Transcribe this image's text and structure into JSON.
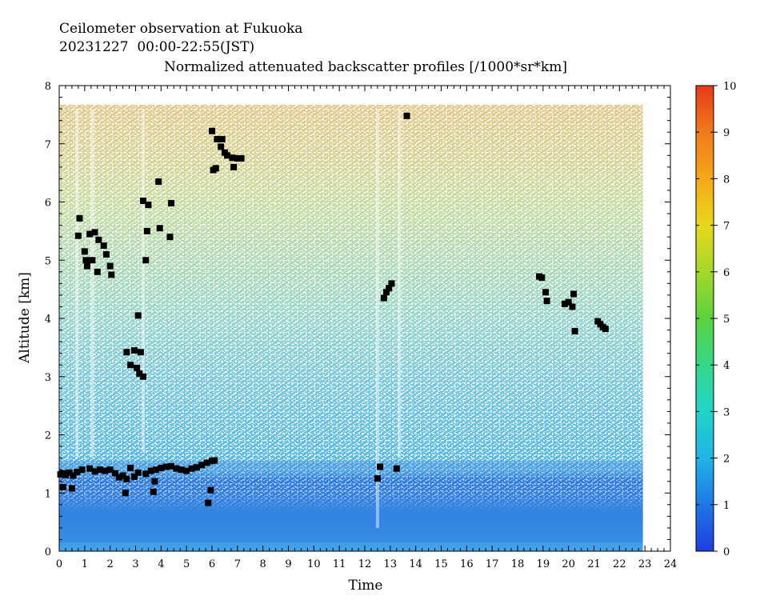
{
  "chart_data": {
    "type": "heatmap",
    "title_lines": [
      "Ceilometer observation at Fukuoka",
      "20231227  00:00-22:55(JST)"
    ],
    "subtitle": "Normalized attenuated backscatter profiles [/1000*sr*km]",
    "xlabel": "Time",
    "ylabel": "Altitude [km]",
    "xlim": [
      0,
      24
    ],
    "ylim": [
      0,
      8
    ],
    "x_ticks": [
      0,
      1,
      2,
      3,
      4,
      5,
      6,
      7,
      8,
      9,
      10,
      11,
      12,
      13,
      14,
      15,
      16,
      17,
      18,
      19,
      20,
      21,
      22,
      23,
      24
    ],
    "y_ticks": [
      0,
      1,
      2,
      3,
      4,
      5,
      6,
      7,
      8
    ],
    "data_extent": {
      "time_end": 22.92,
      "altitude_top": 7.67
    },
    "colorbar": {
      "ticks": [
        0,
        1,
        2,
        3,
        4,
        5,
        6,
        7,
        8,
        9,
        10
      ],
      "range": [
        0,
        10
      ],
      "colors": [
        "#1f3de0",
        "#1e78e6",
        "#20b4e6",
        "#22d4c8",
        "#34d88a",
        "#5ad23c",
        "#a4d82a",
        "#e8d81c",
        "#f6a818",
        "#f07a1a",
        "#e83a18"
      ]
    },
    "cloud_base_points": [
      {
        "x": 0.05,
        "y": 1.32
      },
      {
        "x": 0.15,
        "y": 1.34
      },
      {
        "x": 0.25,
        "y": 1.31
      },
      {
        "x": 0.4,
        "y": 1.35
      },
      {
        "x": 0.55,
        "y": 1.3
      },
      {
        "x": 0.7,
        "y": 1.36
      },
      {
        "x": 0.9,
        "y": 1.4
      },
      {
        "x": 1.2,
        "y": 1.42
      },
      {
        "x": 1.4,
        "y": 1.37
      },
      {
        "x": 1.6,
        "y": 1.4
      },
      {
        "x": 1.8,
        "y": 1.38
      },
      {
        "x": 2.0,
        "y": 1.4
      },
      {
        "x": 2.2,
        "y": 1.34
      },
      {
        "x": 2.35,
        "y": 1.27
      },
      {
        "x": 2.5,
        "y": 1.3
      },
      {
        "x": 2.65,
        "y": 1.24
      },
      {
        "x": 2.8,
        "y": 1.43
      },
      {
        "x": 2.95,
        "y": 1.28
      },
      {
        "x": 3.1,
        "y": 1.35
      },
      {
        "x": 3.4,
        "y": 1.33
      },
      {
        "x": 3.6,
        "y": 1.38
      },
      {
        "x": 3.8,
        "y": 1.4
      },
      {
        "x": 4.0,
        "y": 1.43
      },
      {
        "x": 4.2,
        "y": 1.45
      },
      {
        "x": 4.4,
        "y": 1.46
      },
      {
        "x": 4.6,
        "y": 1.42
      },
      {
        "x": 4.8,
        "y": 1.4
      },
      {
        "x": 5.0,
        "y": 1.38
      },
      {
        "x": 5.2,
        "y": 1.42
      },
      {
        "x": 5.4,
        "y": 1.44
      },
      {
        "x": 5.6,
        "y": 1.48
      },
      {
        "x": 5.8,
        "y": 1.52
      },
      {
        "x": 6.0,
        "y": 1.55
      },
      {
        "x": 6.1,
        "y": 1.56
      },
      {
        "x": 0.15,
        "y": 1.1
      },
      {
        "x": 0.5,
        "y": 1.08
      },
      {
        "x": 2.6,
        "y": 1.0
      },
      {
        "x": 3.7,
        "y": 1.02
      },
      {
        "x": 3.75,
        "y": 1.2
      },
      {
        "x": 5.85,
        "y": 0.83
      },
      {
        "x": 5.95,
        "y": 1.05
      },
      {
        "x": 0.8,
        "y": 5.72
      },
      {
        "x": 0.75,
        "y": 5.42
      },
      {
        "x": 1.0,
        "y": 5.15
      },
      {
        "x": 1.1,
        "y": 4.9
      },
      {
        "x": 1.05,
        "y": 5.0
      },
      {
        "x": 1.2,
        "y": 5.45
      },
      {
        "x": 1.3,
        "y": 5.0
      },
      {
        "x": 1.4,
        "y": 5.48
      },
      {
        "x": 1.5,
        "y": 4.8
      },
      {
        "x": 1.55,
        "y": 5.35
      },
      {
        "x": 1.75,
        "y": 5.25
      },
      {
        "x": 1.85,
        "y": 5.1
      },
      {
        "x": 2.0,
        "y": 4.9
      },
      {
        "x": 2.05,
        "y": 4.75
      },
      {
        "x": 2.65,
        "y": 3.42
      },
      {
        "x": 2.8,
        "y": 3.2
      },
      {
        "x": 2.95,
        "y": 3.45
      },
      {
        "x": 3.05,
        "y": 3.15
      },
      {
        "x": 3.15,
        "y": 3.05
      },
      {
        "x": 3.2,
        "y": 3.42
      },
      {
        "x": 3.1,
        "y": 4.05
      },
      {
        "x": 3.3,
        "y": 3.0
      },
      {
        "x": 3.3,
        "y": 6.02
      },
      {
        "x": 3.5,
        "y": 5.95
      },
      {
        "x": 3.45,
        "y": 5.5
      },
      {
        "x": 3.4,
        "y": 5.0
      },
      {
        "x": 3.9,
        "y": 6.35
      },
      {
        "x": 3.95,
        "y": 5.55
      },
      {
        "x": 4.35,
        "y": 5.4
      },
      {
        "x": 4.4,
        "y": 5.98
      },
      {
        "x": 6.0,
        "y": 7.22
      },
      {
        "x": 6.2,
        "y": 7.08
      },
      {
        "x": 6.35,
        "y": 6.95
      },
      {
        "x": 6.4,
        "y": 7.08
      },
      {
        "x": 6.5,
        "y": 6.85
      },
      {
        "x": 6.6,
        "y": 6.8
      },
      {
        "x": 6.8,
        "y": 6.76
      },
      {
        "x": 7.0,
        "y": 6.75
      },
      {
        "x": 7.15,
        "y": 6.75
      },
      {
        "x": 6.85,
        "y": 6.6
      },
      {
        "x": 6.05,
        "y": 6.55
      },
      {
        "x": 6.15,
        "y": 6.58
      },
      {
        "x": 13.65,
        "y": 7.48
      },
      {
        "x": 12.5,
        "y": 1.25
      },
      {
        "x": 12.6,
        "y": 1.45
      },
      {
        "x": 13.25,
        "y": 1.42
      },
      {
        "x": 12.75,
        "y": 4.35
      },
      {
        "x": 12.85,
        "y": 4.45
      },
      {
        "x": 12.95,
        "y": 4.52
      },
      {
        "x": 13.05,
        "y": 4.6
      },
      {
        "x": 18.85,
        "y": 4.72
      },
      {
        "x": 18.95,
        "y": 4.7
      },
      {
        "x": 19.1,
        "y": 4.45
      },
      {
        "x": 19.15,
        "y": 4.3
      },
      {
        "x": 19.85,
        "y": 4.25
      },
      {
        "x": 20.0,
        "y": 4.28
      },
      {
        "x": 20.15,
        "y": 4.2
      },
      {
        "x": 20.2,
        "y": 4.42
      },
      {
        "x": 20.25,
        "y": 3.78
      },
      {
        "x": 21.15,
        "y": 3.95
      },
      {
        "x": 21.25,
        "y": 3.9
      },
      {
        "x": 21.35,
        "y": 3.85
      },
      {
        "x": 21.45,
        "y": 3.82
      }
    ]
  }
}
